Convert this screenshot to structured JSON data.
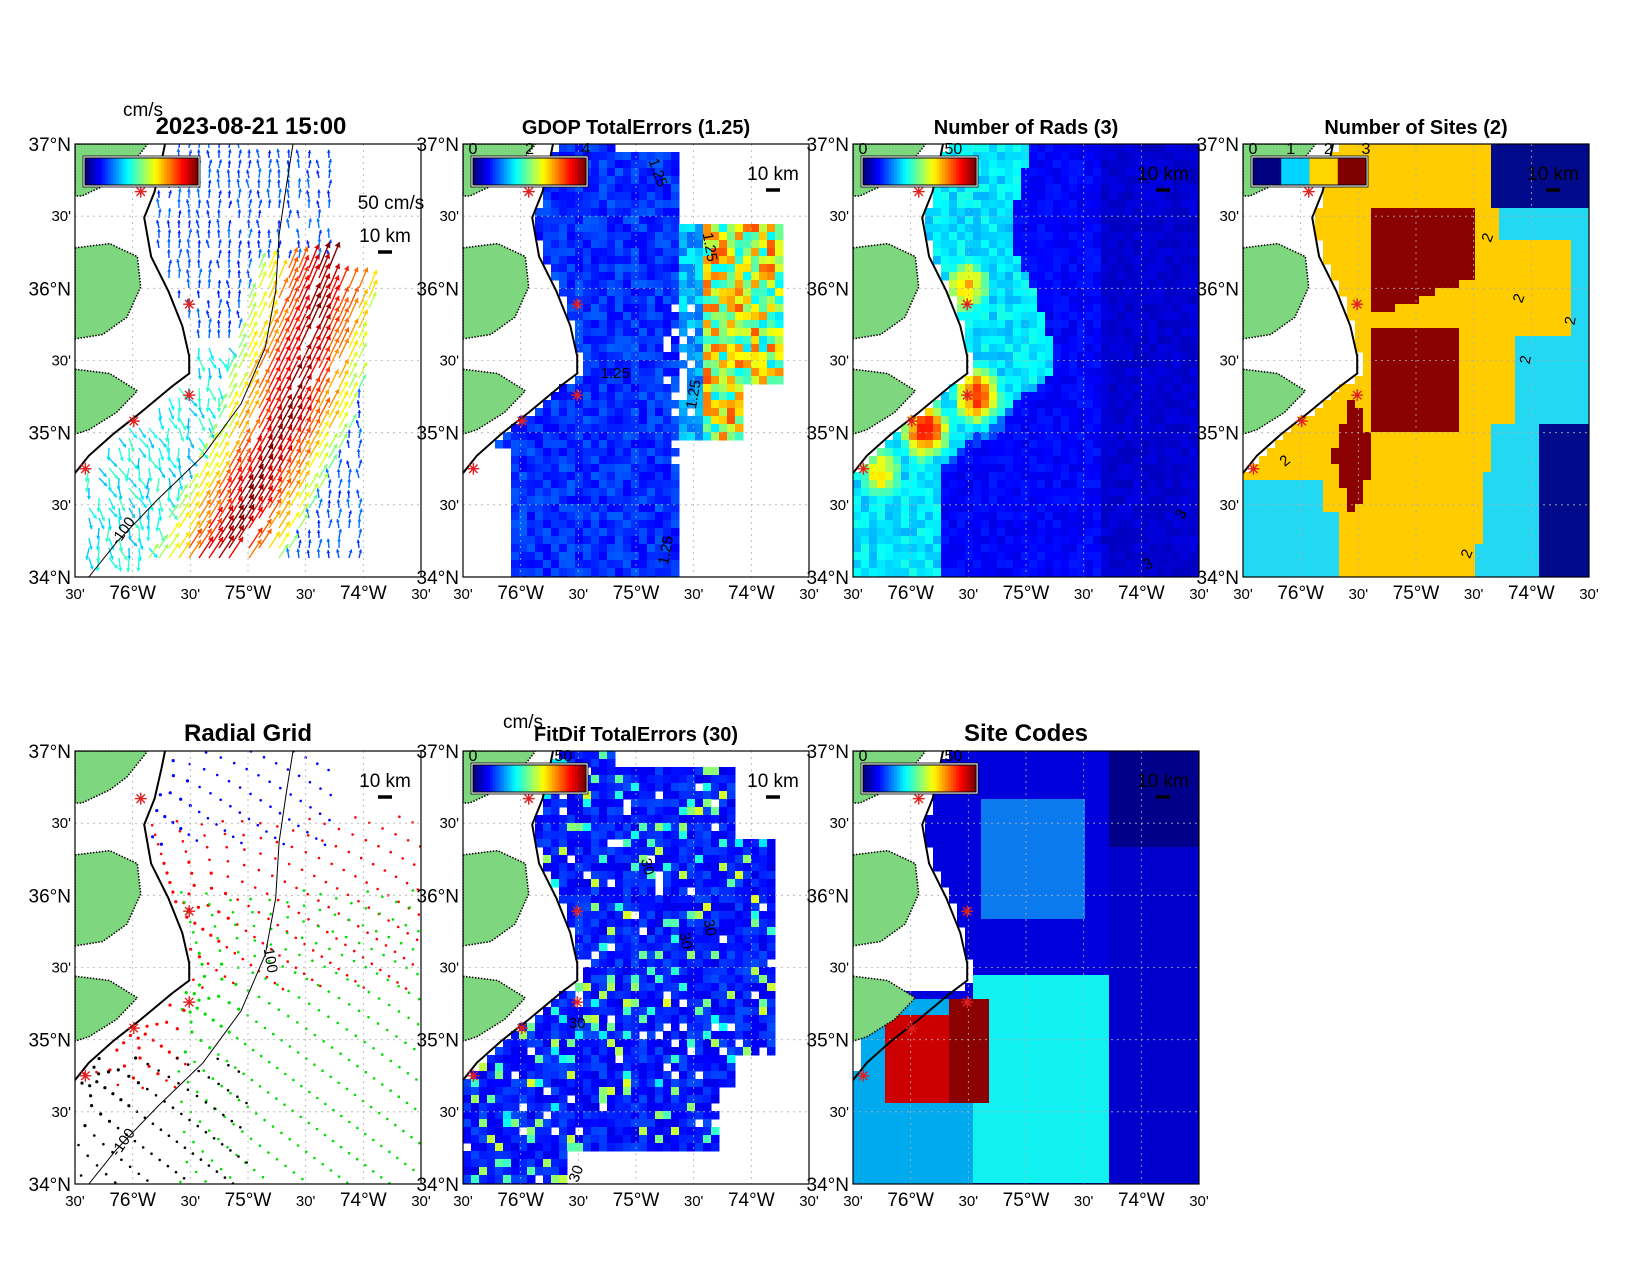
{
  "figure": {
    "panels": [
      {
        "id": "total-currents",
        "title": "2023-08-21 15:00",
        "colorbar_label": "cm/s",
        "colorbar_ticks": [],
        "speed_scale_label": "50 cm/s",
        "distance_scale_label": "10 km",
        "contour_labels": [
          "-100"
        ],
        "kind": "vectors"
      },
      {
        "id": "gdop-total-errors",
        "title": "GDOP TotalErrors (1.25)",
        "colorbar_label": "",
        "colorbar_ticks": [
          "0",
          "2",
          "4"
        ],
        "distance_scale_label": "10 km",
        "contour_labels": [
          "1.25",
          "1.25",
          "1.25",
          "1.25",
          "1.25"
        ],
        "kind": "field-gdop"
      },
      {
        "id": "number-of-rads",
        "title": "Number of Rads (3)",
        "colorbar_label": "",
        "colorbar_ticks": [
          "0",
          "50"
        ],
        "distance_scale_label": "10 km",
        "contour_labels": [
          "3",
          "3"
        ],
        "kind": "field-rads"
      },
      {
        "id": "number-of-sites",
        "title": "Number of Sites (2)",
        "colorbar_label": "",
        "colorbar_ticks": [
          "0",
          "1",
          "2",
          "3"
        ],
        "distance_scale_label": "10 km",
        "contour_labels": [
          "2",
          "2",
          "2",
          "2",
          "2",
          "2"
        ],
        "kind": "field-sites"
      },
      {
        "id": "radial-grid",
        "title": "Radial Grid",
        "colorbar_label": "",
        "colorbar_ticks": [],
        "distance_scale_label": "10 km",
        "contour_labels": [
          "-100",
          "-100"
        ],
        "kind": "radial"
      },
      {
        "id": "fitdif-total-errors",
        "title": "FitDif TotalErrors (30)",
        "colorbar_label": "cm/s",
        "colorbar_ticks": [
          "0",
          "50"
        ],
        "distance_scale_label": "10 km",
        "contour_labels": [
          "30",
          "30",
          "30",
          "30",
          "30"
        ],
        "kind": "field-fitdif"
      },
      {
        "id": "site-codes",
        "title": "Site Codes",
        "colorbar_label": "",
        "colorbar_ticks": [
          "0",
          "50"
        ],
        "distance_scale_label": "10 km",
        "contour_labels": [],
        "kind": "field-sitecodes"
      }
    ],
    "axes": {
      "lat_ticks": [
        "37°N",
        "30'",
        "36°N",
        "30'",
        "35°N",
        "30'",
        "34°N"
      ],
      "lon_ticks": [
        "30'",
        "76°W",
        "30'",
        "75°W",
        "30'",
        "74°W",
        "30'"
      ],
      "lat_range": [
        34,
        37
      ],
      "lon_range": [
        -76.5,
        -73.5
      ]
    },
    "colors": {
      "land": "#7ed67e",
      "site_marker": "#e02020",
      "radial_sites": [
        "#0000ff",
        "#ff0000",
        "#00dd00",
        "#000000"
      ]
    }
  }
}
